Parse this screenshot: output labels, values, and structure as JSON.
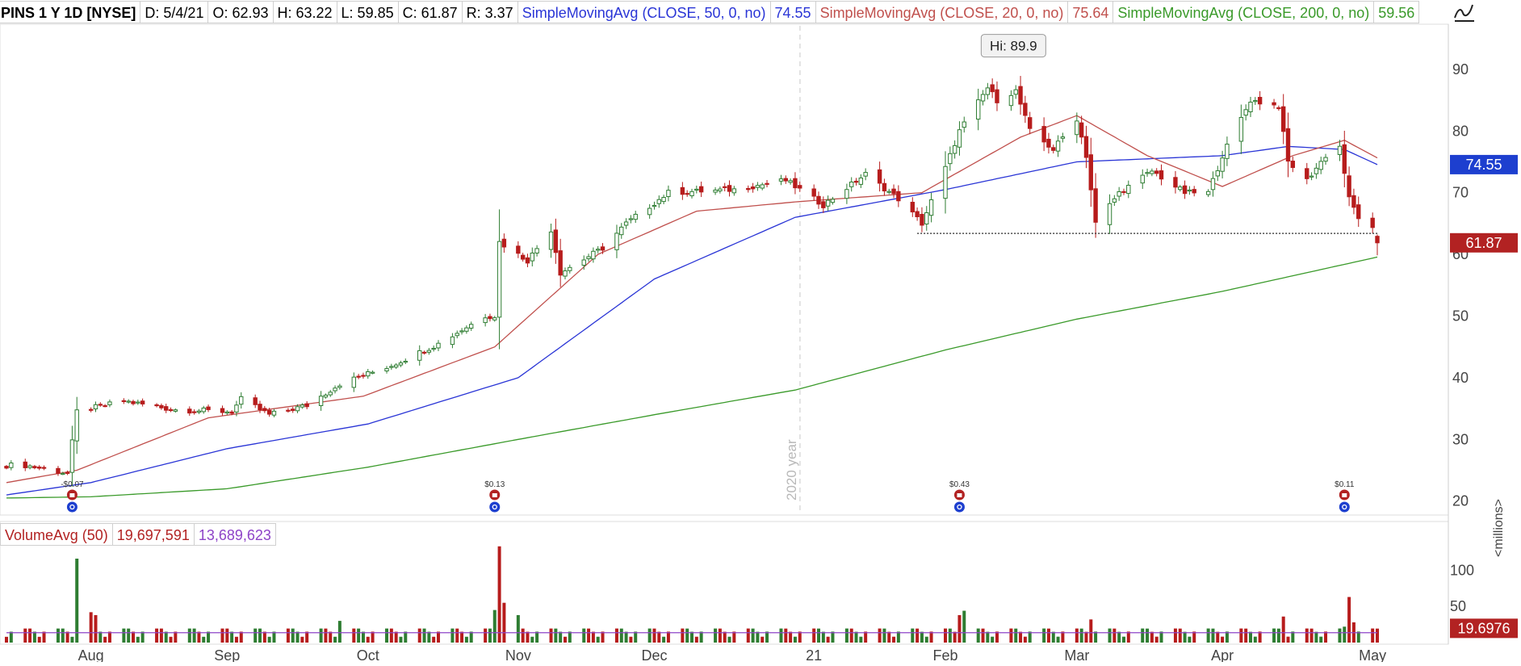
{
  "header": {
    "symbol": "PINS 1 Y 1D [NYSE]",
    "date": "D: 5/4/21",
    "open": "O: 62.93",
    "high": "H: 63.22",
    "low": "L: 59.85",
    "close": "C: 61.87",
    "range": "R: 3.37",
    "sma50_label": "SimpleMovingAvg (CLOSE, 50, 0, no)",
    "sma50_value": "74.55",
    "sma20_label": "SimpleMovingAvg (CLOSE, 20, 0, no)",
    "sma20_value": "75.64",
    "sma200_label": "SimpleMovingAvg (CLOSE, 200, 0, no)",
    "sma200_value": "59.56"
  },
  "volume_header": {
    "label": "VolumeAvg (50)",
    "volume": "19,697,591",
    "average": "13,689,623"
  },
  "colors": {
    "up": "#2e7d32",
    "down": "#b71c1c",
    "sma20": "#c0504d",
    "sma50": "#2a35d6",
    "sma200": "#3a9a2a",
    "vol_avg": "#8e44c8",
    "tag_blue": "#1d3fcf",
    "tag_red": "#b22222"
  },
  "icons": {
    "drawing_tool": "line-tool-icon",
    "earnings": "earnings-marker-icon",
    "info": "info-marker-icon"
  },
  "chart_data": {
    "type": "candlestick",
    "price_ylim": [
      18,
      96
    ],
    "price_yticks": [
      20,
      30,
      40,
      50,
      60,
      70,
      80,
      90
    ],
    "volume_ylim": [
      0,
      145
    ],
    "volume_yticks": [
      50,
      100
    ],
    "volume_unit": "<millions>",
    "year_label": "2020 year",
    "hi_label": "Hi: 89.9",
    "price_tags": [
      {
        "label": "74.55",
        "value": 74.55,
        "color": "#1d3fcf"
      },
      {
        "label": "61.87",
        "value": 61.87,
        "color": "#b22222"
      }
    ],
    "volume_tag": {
      "label": "19.6976",
      "value": 19.7,
      "color": "#b22222"
    },
    "support_level": 63.4,
    "months": [
      {
        "label": "Aug",
        "date": "2020-08-03"
      },
      {
        "label": "Sep",
        "date": "2020-09-01"
      },
      {
        "label": "Oct",
        "date": "2020-10-01"
      },
      {
        "label": "Nov",
        "date": "2020-11-02"
      },
      {
        "label": "Dec",
        "date": "2020-12-01"
      },
      {
        "label": "21",
        "date": "2021-01-04"
      },
      {
        "label": "Feb",
        "date": "2021-02-01"
      },
      {
        "label": "Mar",
        "date": "2021-03-01"
      },
      {
        "label": "Apr",
        "date": "2021-04-01"
      },
      {
        "label": "May",
        "date": "2021-05-03"
      }
    ],
    "earnings": [
      {
        "label": "-$0.07",
        "date": "2020-07-30"
      },
      {
        "label": "$0.13",
        "date": "2020-10-28"
      },
      {
        "label": "$0.43",
        "date": "2021-02-04"
      },
      {
        "label": "$0.11",
        "date": "2021-04-27"
      }
    ],
    "anchors": [
      [
        "2020-07-20",
        25.8
      ],
      [
        "2020-07-29",
        24.5
      ],
      [
        "2020-07-31",
        34.5
      ],
      [
        "2020-08-10",
        36.2
      ],
      [
        "2020-08-21",
        34.8
      ],
      [
        "2020-09-02",
        34.5
      ],
      [
        "2020-09-04",
        36.5
      ],
      [
        "2020-09-10",
        34.0
      ],
      [
        "2020-09-18",
        35.5
      ],
      [
        "2020-09-25",
        39.0
      ],
      [
        "2020-10-06",
        42.0
      ],
      [
        "2020-10-16",
        45.5
      ],
      [
        "2020-10-26",
        50.0
      ],
      [
        "2020-10-28",
        50.0
      ],
      [
        "2020-10-29",
        62.0
      ],
      [
        "2020-11-04",
        59.0
      ],
      [
        "2020-11-09",
        64.0
      ],
      [
        "2020-11-11",
        57.0
      ],
      [
        "2020-11-20",
        61.0
      ],
      [
        "2020-11-25",
        65.0
      ],
      [
        "2020-12-04",
        70.0
      ],
      [
        "2020-12-18",
        70.5
      ],
      [
        "2020-12-29",
        72.0
      ],
      [
        "2021-01-06",
        68.0
      ],
      [
        "2021-01-15",
        73.0
      ],
      [
        "2021-01-22",
        69.0
      ],
      [
        "2021-01-27",
        65.0
      ],
      [
        "2021-02-01",
        74.0
      ],
      [
        "2021-02-04",
        80.0
      ],
      [
        "2021-02-10",
        87.0
      ],
      [
        "2021-02-12",
        85.0
      ],
      [
        "2021-02-16",
        86.5
      ],
      [
        "2021-02-19",
        80.0
      ],
      [
        "2021-02-24",
        77.0
      ],
      [
        "2021-03-01",
        82.0
      ],
      [
        "2021-03-03",
        76.0
      ],
      [
        "2021-03-05",
        65.0
      ],
      [
        "2021-03-10",
        70.0
      ],
      [
        "2021-03-17",
        73.5
      ],
      [
        "2021-03-24",
        70.0
      ],
      [
        "2021-03-29",
        70.0
      ],
      [
        "2021-04-01",
        76.0
      ],
      [
        "2021-04-07",
        85.0
      ],
      [
        "2021-04-13",
        84.0
      ],
      [
        "2021-04-15",
        75.0
      ],
      [
        "2021-04-19",
        72.0
      ],
      [
        "2021-04-23",
        76.0
      ],
      [
        "2021-04-26",
        77.5
      ],
      [
        "2021-04-28",
        69.0
      ],
      [
        "2021-04-30",
        66.0
      ],
      [
        "2021-05-03",
        64.0
      ],
      [
        "2021-05-04",
        61.87
      ]
    ],
    "last_bar": {
      "date": "2021-05-04",
      "open": 62.93,
      "high": 63.22,
      "low": 59.85,
      "close": 61.87
    },
    "sma20": [
      [
        "2020-07-16",
        23.0
      ],
      [
        "2020-07-31",
        25.0
      ],
      [
        "2020-08-28",
        33.5
      ],
      [
        "2020-09-30",
        37.0
      ],
      [
        "2020-10-28",
        45.0
      ],
      [
        "2020-11-19",
        60.0
      ],
      [
        "2020-12-10",
        67.0
      ],
      [
        "2020-12-31",
        68.5
      ],
      [
        "2021-01-27",
        70.0
      ],
      [
        "2021-02-17",
        79.0
      ],
      [
        "2021-03-01",
        82.5
      ],
      [
        "2021-03-16",
        76.0
      ],
      [
        "2021-04-01",
        71.0
      ],
      [
        "2021-04-16",
        76.0
      ],
      [
        "2021-04-27",
        78.5
      ],
      [
        "2021-05-04",
        75.64
      ]
    ],
    "sma50": [
      [
        "2020-07-16",
        21.0
      ],
      [
        "2020-08-03",
        23.0
      ],
      [
        "2020-09-01",
        28.5
      ],
      [
        "2020-10-01",
        32.5
      ],
      [
        "2020-11-02",
        40.0
      ],
      [
        "2020-12-01",
        56.0
      ],
      [
        "2020-12-31",
        66.0
      ],
      [
        "2021-02-01",
        70.5
      ],
      [
        "2021-03-01",
        75.0
      ],
      [
        "2021-04-01",
        76.0
      ],
      [
        "2021-04-15",
        77.5
      ],
      [
        "2021-04-27",
        77.0
      ],
      [
        "2021-05-04",
        74.55
      ]
    ],
    "sma200": [
      [
        "2020-07-16",
        20.5
      ],
      [
        "2020-08-03",
        20.7
      ],
      [
        "2020-09-01",
        22.0
      ],
      [
        "2020-10-01",
        25.5
      ],
      [
        "2020-11-02",
        30.0
      ],
      [
        "2020-12-01",
        34.0
      ],
      [
        "2020-12-31",
        38.0
      ],
      [
        "2021-02-01",
        44.5
      ],
      [
        "2021-03-01",
        49.5
      ],
      [
        "2021-04-01",
        54.0
      ],
      [
        "2021-05-04",
        59.56
      ]
    ],
    "volume_avg": 13.7,
    "volume_spikes": [
      [
        "2020-07-31",
        116
      ],
      [
        "2020-08-03",
        42
      ],
      [
        "2020-08-04",
        38
      ],
      [
        "2020-09-25",
        30
      ],
      [
        "2020-10-28",
        45
      ],
      [
        "2020-10-29",
        133
      ],
      [
        "2020-10-30",
        55
      ],
      [
        "2020-11-02",
        38
      ],
      [
        "2021-02-04",
        38
      ],
      [
        "2021-02-05",
        44
      ],
      [
        "2021-03-04",
        32
      ],
      [
        "2021-04-14",
        36
      ],
      [
        "2021-04-27",
        22
      ],
      [
        "2021-04-28",
        63
      ],
      [
        "2021-04-29",
        28
      ]
    ]
  }
}
